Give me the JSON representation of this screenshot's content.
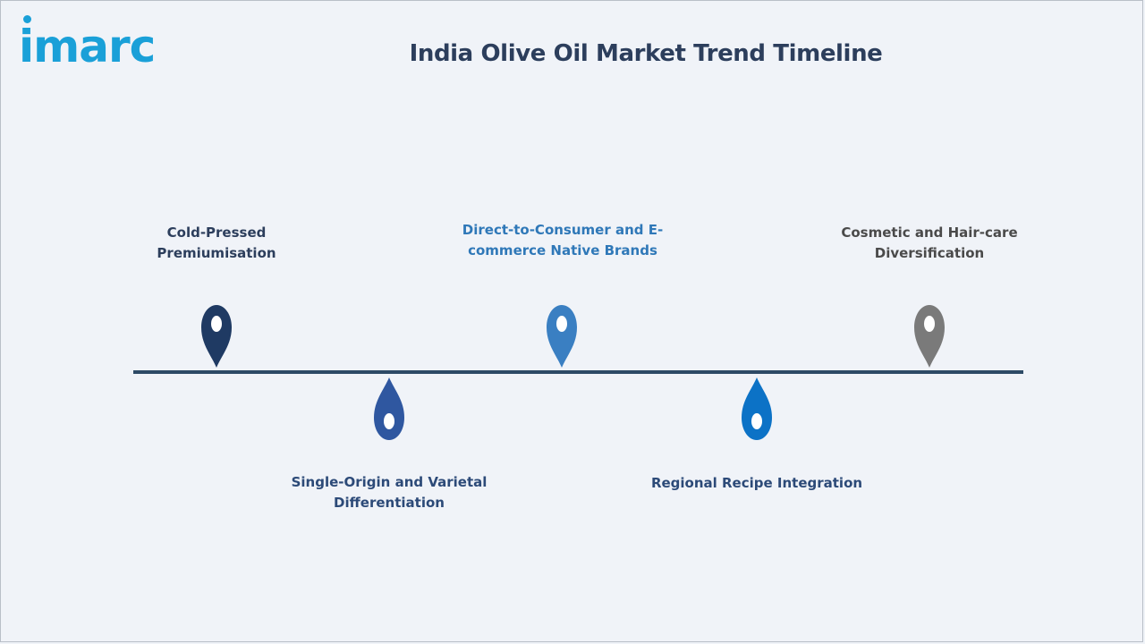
{
  "header": {
    "logo_text": "imarc",
    "title": "India Olive Oil Market Trend Timeline"
  },
  "timeline": {
    "events": [
      {
        "label_line1": "Cold-Pressed",
        "label_line2": "Premiumisation",
        "position": "above",
        "color": "#1f3a63"
      },
      {
        "label_line1": "Single-Origin and Varietal",
        "label_line2": "Differentiation",
        "position": "below",
        "color": "#2f57a0"
      },
      {
        "label_line1": "Direct-to-Consumer and E-",
        "label_line2": "commerce Native Brands",
        "position": "above",
        "color": "#3a7fc2"
      },
      {
        "label_line1": "Regional Recipe Integration",
        "label_line2": "",
        "position": "below",
        "color": "#0c72c6"
      },
      {
        "label_line1": "Cosmetic and Hair-care",
        "label_line2": "Diversification",
        "position": "above",
        "color": "#7a7a7a"
      }
    ],
    "label_colors": [
      "#2c3e5c",
      "#2c4a78",
      "#2f78b8",
      "#2c4a78",
      "#4a4a4a"
    ],
    "axis_color": "#2d4a66"
  }
}
